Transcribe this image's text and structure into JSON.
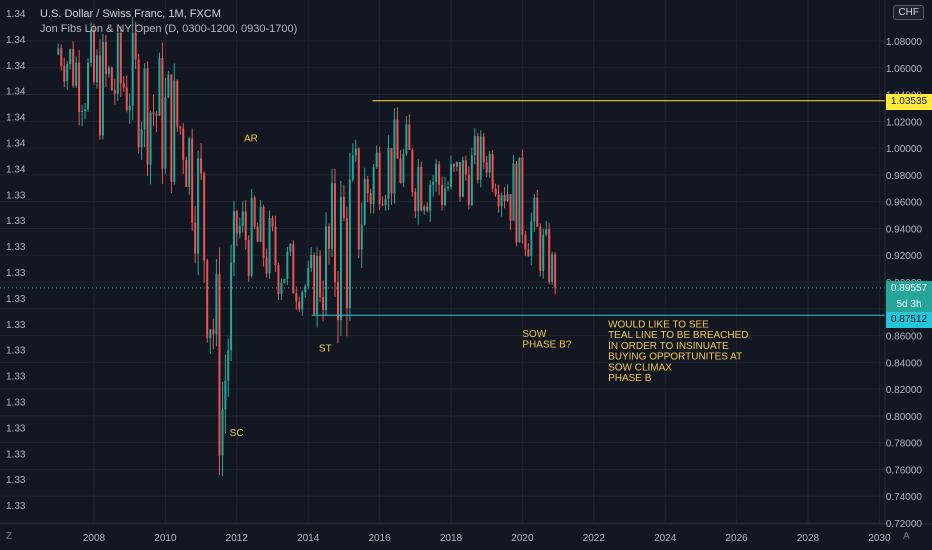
{
  "header": {
    "symbol_line": "U.S. Dollar / Swiss Franc, 1M, FXCM",
    "indicator_line": "Jon Fibs Lon & NY Open (D, 0300-1200, 0930-1700)"
  },
  "currency_badge": "CHF",
  "bottom_buttons": {
    "zoom": "Z",
    "auto": "A"
  },
  "price_labels": {
    "yellow": "1.03535",
    "current": "0.89557",
    "countdown": "5d 3h",
    "teal": "0.87512"
  },
  "colors": {
    "background": "#131722",
    "up": "#26a69a",
    "down": "#ef5350",
    "yellow": "#ffeb3b",
    "teal": "#26c6da",
    "annotation": "#f0c94f"
  },
  "chart_data": {
    "type": "candlestick",
    "x_axis": {
      "ticks": [
        "2008",
        "2010",
        "2012",
        "2014",
        "2016",
        "2018",
        "2020",
        "2022",
        "2024",
        "2026",
        "2028",
        "2030"
      ]
    },
    "right_axis": {
      "ticks": [
        "1.08000",
        "1.06000",
        "1.04000",
        "1.02000",
        "1.00000",
        "0.98000",
        "0.96000",
        "0.94000",
        "0.92000",
        "0.90000",
        "0.88000",
        "0.86000",
        "0.84000",
        "0.82000",
        "0.80000",
        "0.78000",
        "0.76000",
        "0.74000",
        "0.72000"
      ],
      "ylim": [
        0.72,
        1.09
      ]
    },
    "left_axis": {
      "ticks": [
        "1.34",
        "1.34",
        "1.34",
        "1.34",
        "1.34",
        "1.34",
        "1.34",
        "1.33",
        "1.33",
        "1.33",
        "1.33",
        "1.33",
        "1.33",
        "1.33",
        "1.33",
        "1.33",
        "1.33",
        "1.33",
        "1.33",
        "1.33"
      ]
    },
    "series": [
      {
        "year": 2007.0,
        "low": 1.05,
        "high": 1.1
      },
      {
        "year": 2008.0,
        "low": 0.99,
        "high": 1.1
      },
      {
        "year": 2009.0,
        "low": 1.0,
        "high": 1.1
      },
      {
        "year": 2010.0,
        "low": 0.95,
        "high": 1.09
      },
      {
        "year": 2010.5,
        "low": 0.96,
        "high": 1.07
      },
      {
        "year": 2011.0,
        "low": 0.88,
        "high": 1.03
      },
      {
        "year": 2011.6,
        "low": 0.71,
        "high": 0.9
      },
      {
        "year": 2012.0,
        "low": 0.9,
        "high": 0.98
      },
      {
        "year": 2013.0,
        "low": 0.88,
        "high": 0.96
      },
      {
        "year": 2014.0,
        "low": 0.87,
        "high": 0.92
      },
      {
        "year": 2015.0,
        "low": 0.83,
        "high": 1.03
      },
      {
        "year": 2016.0,
        "low": 0.95,
        "high": 1.03
      },
      {
        "year": 2017.0,
        "low": 0.94,
        "high": 1.03
      },
      {
        "year": 2018.0,
        "low": 0.93,
        "high": 1.01
      },
      {
        "year": 2019.0,
        "low": 0.97,
        "high": 1.02
      },
      {
        "year": 2020.0,
        "low": 0.91,
        "high": 1.0
      },
      {
        "year": 2021.0,
        "low": 0.88,
        "high": 0.92
      }
    ],
    "levels": [
      {
        "name": "yellow",
        "price": 1.03535
      },
      {
        "name": "current",
        "price": 0.89557
      },
      {
        "name": "teal",
        "price": 0.87512
      }
    ],
    "annotations": [
      {
        "text": "AR",
        "year": 2012.2,
        "price": 1.005
      },
      {
        "text": "SC",
        "year": 2011.8,
        "price": 0.785
      },
      {
        "text": "ST",
        "year": 2014.3,
        "price": 0.848
      },
      {
        "text": "SOW",
        "year": 2020.0,
        "price": 0.859
      },
      {
        "text": "PHASE B?",
        "year": 2020.0,
        "price": 0.851
      },
      {
        "text": "WOULD LIKE TO SEE",
        "year": 2022.4,
        "price": 0.866
      },
      {
        "text": "TEAL LINE TO BE BREACHED",
        "year": 2022.4,
        "price": 0.858
      },
      {
        "text": "IN ORDER TO INSINUATE",
        "year": 2022.4,
        "price": 0.85
      },
      {
        "text": "BUYING OPPORTUNITES AT",
        "year": 2022.4,
        "price": 0.842
      },
      {
        "text": "SOW CLIMAX",
        "year": 2022.4,
        "price": 0.834
      },
      {
        "text": "PHASE B",
        "year": 2022.4,
        "price": 0.826
      }
    ]
  }
}
